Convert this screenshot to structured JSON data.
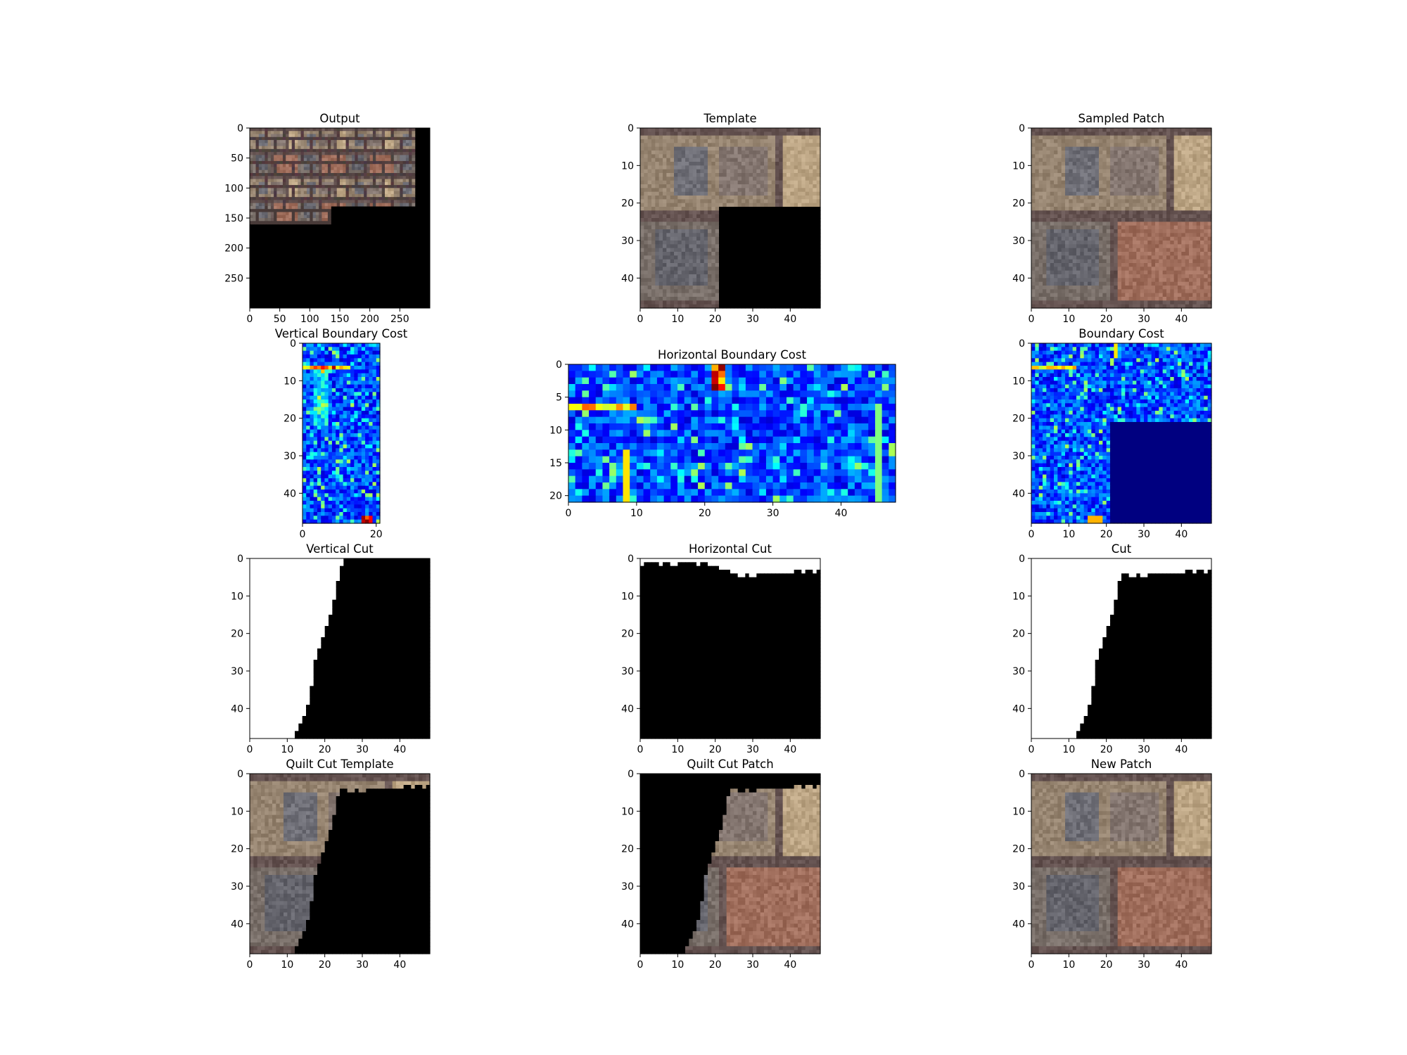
{
  "colors": {
    "brick_light": "#a08a70",
    "brick_dark": "#6b5a52",
    "mortar": "#5a4a44",
    "mask_black": "#000000",
    "mask_white": "#ffffff",
    "cmap": "jet"
  },
  "chart_data": [
    {
      "name": "output",
      "type": "heatmap",
      "title": "Output",
      "render": "brick-image",
      "xticks": [
        "0",
        "50",
        "100",
        "150",
        "200",
        "250"
      ],
      "yticks": [
        "0",
        "50",
        "100",
        "150",
        "200",
        "250"
      ],
      "xlim": [
        0,
        300
      ],
      "ylim": [
        0,
        300
      ],
      "filled_region": "top rows 0–160 filled to x≈275; rows 130–160 filled to x≈135; remainder black"
    },
    {
      "name": "template",
      "type": "heatmap",
      "title": "Template",
      "render": "brick-image",
      "xticks": [
        "0",
        "10",
        "20",
        "30",
        "40"
      ],
      "yticks": [
        "0",
        "10",
        "20",
        "30",
        "40"
      ],
      "xlim": [
        0,
        48
      ],
      "ylim": [
        0,
        48
      ],
      "black_region": "x 21–48, y 21–48"
    },
    {
      "name": "sampled-patch",
      "type": "heatmap",
      "title": "Sampled Patch",
      "render": "brick-image",
      "xticks": [
        "0",
        "10",
        "20",
        "30",
        "40"
      ],
      "yticks": [
        "0",
        "10",
        "20",
        "30",
        "40"
      ],
      "xlim": [
        0,
        48
      ],
      "ylim": [
        0,
        48
      ]
    },
    {
      "name": "vertical-boundary-cost",
      "type": "heatmap",
      "title": "Vertical Boundary Cost",
      "render": "jet-cost",
      "xticks": [
        "0",
        "20"
      ],
      "yticks": [
        "0",
        "10",
        "20",
        "30",
        "40"
      ],
      "xlim": [
        0,
        21
      ],
      "ylim": [
        0,
        48
      ]
    },
    {
      "name": "horizontal-boundary-cost",
      "type": "heatmap",
      "title": "Horizontal Boundary Cost",
      "render": "jet-cost",
      "xticks": [
        "0",
        "10",
        "20",
        "30",
        "40"
      ],
      "yticks": [
        "0",
        "5",
        "10",
        "15",
        "20"
      ],
      "xlim": [
        0,
        48
      ],
      "ylim": [
        0,
        21
      ]
    },
    {
      "name": "boundary-cost",
      "type": "heatmap",
      "title": "Boundary Cost",
      "render": "jet-cost",
      "xticks": [
        "0",
        "10",
        "20",
        "30",
        "40"
      ],
      "yticks": [
        "0",
        "10",
        "20",
        "30",
        "40"
      ],
      "xlim": [
        0,
        48
      ],
      "ylim": [
        0,
        48
      ]
    },
    {
      "name": "vertical-cut",
      "type": "heatmap",
      "title": "Vertical Cut",
      "render": "mask-vertical",
      "xticks": [
        "0",
        "10",
        "20",
        "30",
        "40"
      ],
      "yticks": [
        "0",
        "10",
        "20",
        "30",
        "40"
      ],
      "xlim": [
        0,
        48
      ],
      "ylim": [
        0,
        48
      ],
      "boundary_x_at_row": [
        25,
        25,
        24,
        24,
        24,
        24,
        23,
        23,
        23,
        23,
        23,
        22,
        22,
        22,
        22,
        21,
        21,
        21,
        20,
        20,
        20,
        19,
        19,
        19,
        18,
        18,
        18,
        17,
        17,
        17,
        17,
        17,
        17,
        17,
        16,
        16,
        16,
        16,
        16,
        15,
        15,
        15,
        14,
        14,
        13,
        13,
        12,
        12,
        11
      ]
    },
    {
      "name": "horizontal-cut",
      "type": "heatmap",
      "title": "Horizontal Cut",
      "render": "mask-horizontal",
      "xticks": [
        "0",
        "10",
        "20",
        "30",
        "40"
      ],
      "yticks": [
        "0",
        "10",
        "20",
        "30",
        "40"
      ],
      "xlim": [
        0,
        48
      ],
      "ylim": [
        0,
        48
      ],
      "boundary_y_at_col": [
        2,
        1,
        1,
        1,
        1,
        2,
        1,
        1,
        2,
        2,
        1,
        1,
        1,
        1,
        1,
        2,
        1,
        1,
        2,
        2,
        2,
        3,
        3,
        3,
        4,
        4,
        5,
        5,
        4,
        5,
        5,
        4,
        4,
        4,
        4,
        4,
        4,
        4,
        4,
        4,
        4,
        3,
        3,
        4,
        3,
        3,
        4,
        3,
        1
      ]
    },
    {
      "name": "cut",
      "type": "heatmap",
      "title": "Cut",
      "render": "mask-combined",
      "xticks": [
        "0",
        "10",
        "20",
        "30",
        "40"
      ],
      "yticks": [
        "0",
        "10",
        "20",
        "30",
        "40"
      ],
      "xlim": [
        0,
        48
      ],
      "ylim": [
        0,
        48
      ]
    },
    {
      "name": "quilt-cut-template",
      "type": "heatmap",
      "title": "Quilt Cut Template",
      "render": "brick-cut-template",
      "xticks": [
        "0",
        "10",
        "20",
        "30",
        "40"
      ],
      "yticks": [
        "0",
        "10",
        "20",
        "30",
        "40"
      ],
      "xlim": [
        0,
        48
      ],
      "ylim": [
        0,
        48
      ]
    },
    {
      "name": "quilt-cut-patch",
      "type": "heatmap",
      "title": "Quilt Cut Patch",
      "render": "brick-cut-patch",
      "xticks": [
        "0",
        "10",
        "20",
        "30",
        "40"
      ],
      "yticks": [
        "0",
        "10",
        "20",
        "30",
        "40"
      ],
      "xlim": [
        0,
        48
      ],
      "ylim": [
        0,
        48
      ]
    },
    {
      "name": "new-patch",
      "type": "heatmap",
      "title": "New Patch",
      "render": "brick-image",
      "xticks": [
        "0",
        "10",
        "20",
        "30",
        "40"
      ],
      "yticks": [
        "0",
        "10",
        "20",
        "30",
        "40"
      ],
      "xlim": [
        0,
        48
      ],
      "ylim": [
        0,
        48
      ]
    }
  ]
}
